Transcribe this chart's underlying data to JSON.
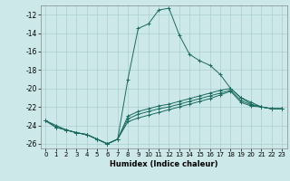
{
  "xlabel": "Humidex (Indice chaleur)",
  "bg_color": "#cce8e8",
  "grid_color": "#aacfcf",
  "line_color": "#1a6b60",
  "xlim": [
    -0.5,
    23.5
  ],
  "ylim": [
    -26.5,
    -11.0
  ],
  "xticks": [
    0,
    1,
    2,
    3,
    4,
    5,
    6,
    7,
    8,
    9,
    10,
    11,
    12,
    13,
    14,
    15,
    16,
    17,
    18,
    19,
    20,
    21,
    22,
    23
  ],
  "yticks": [
    -26,
    -24,
    -22,
    -20,
    -18,
    -16,
    -14,
    -12
  ],
  "main_x": [
    0,
    1,
    2,
    3,
    4,
    5,
    6,
    7,
    8,
    9,
    10,
    11,
    12,
    13,
    14,
    15,
    16,
    17,
    18,
    19,
    20,
    21,
    22,
    23
  ],
  "main_y": [
    -23.5,
    -24.0,
    -24.5,
    -24.8,
    -25.0,
    -25.5,
    -26.0,
    -25.5,
    -19.0,
    -13.5,
    -13.0,
    -11.5,
    -11.3,
    -14.2,
    -16.3,
    -17.0,
    -17.5,
    -18.5,
    -20.0,
    -21.0,
    -21.5,
    -22.0,
    -22.2,
    -22.2
  ],
  "line2_x": [
    0,
    1,
    2,
    3,
    4,
    5,
    6,
    7,
    8,
    9,
    10,
    11,
    12,
    13,
    14,
    15,
    16,
    17,
    18,
    19,
    20,
    21,
    22,
    23
  ],
  "line2_y": [
    -23.5,
    -24.2,
    -24.5,
    -24.8,
    -25.0,
    -25.5,
    -26.0,
    -25.5,
    -23.0,
    -22.5,
    -22.2,
    -21.9,
    -21.7,
    -21.4,
    -21.1,
    -20.8,
    -20.5,
    -20.2,
    -20.0,
    -21.0,
    -21.7,
    -22.0,
    -22.2,
    -22.2
  ],
  "line3_x": [
    0,
    1,
    2,
    3,
    4,
    5,
    6,
    7,
    8,
    9,
    10,
    11,
    12,
    13,
    14,
    15,
    16,
    17,
    18,
    19,
    20,
    21,
    22,
    23
  ],
  "line3_y": [
    -23.5,
    -24.2,
    -24.5,
    -24.8,
    -25.0,
    -25.5,
    -26.0,
    -25.5,
    -23.3,
    -22.8,
    -22.5,
    -22.2,
    -22.0,
    -21.7,
    -21.4,
    -21.1,
    -20.8,
    -20.5,
    -20.2,
    -21.3,
    -21.8,
    -22.0,
    -22.2,
    -22.2
  ],
  "line4_x": [
    0,
    1,
    2,
    3,
    4,
    5,
    6,
    7,
    8,
    9,
    10,
    11,
    12,
    13,
    14,
    15,
    16,
    17,
    18,
    19,
    20,
    21,
    22,
    23
  ],
  "line4_y": [
    -23.5,
    -24.2,
    -24.5,
    -24.8,
    -25.0,
    -25.5,
    -26.0,
    -25.5,
    -23.6,
    -23.2,
    -22.9,
    -22.6,
    -22.3,
    -22.0,
    -21.7,
    -21.4,
    -21.1,
    -20.7,
    -20.3,
    -21.5,
    -21.9,
    -22.0,
    -22.2,
    -22.2
  ]
}
